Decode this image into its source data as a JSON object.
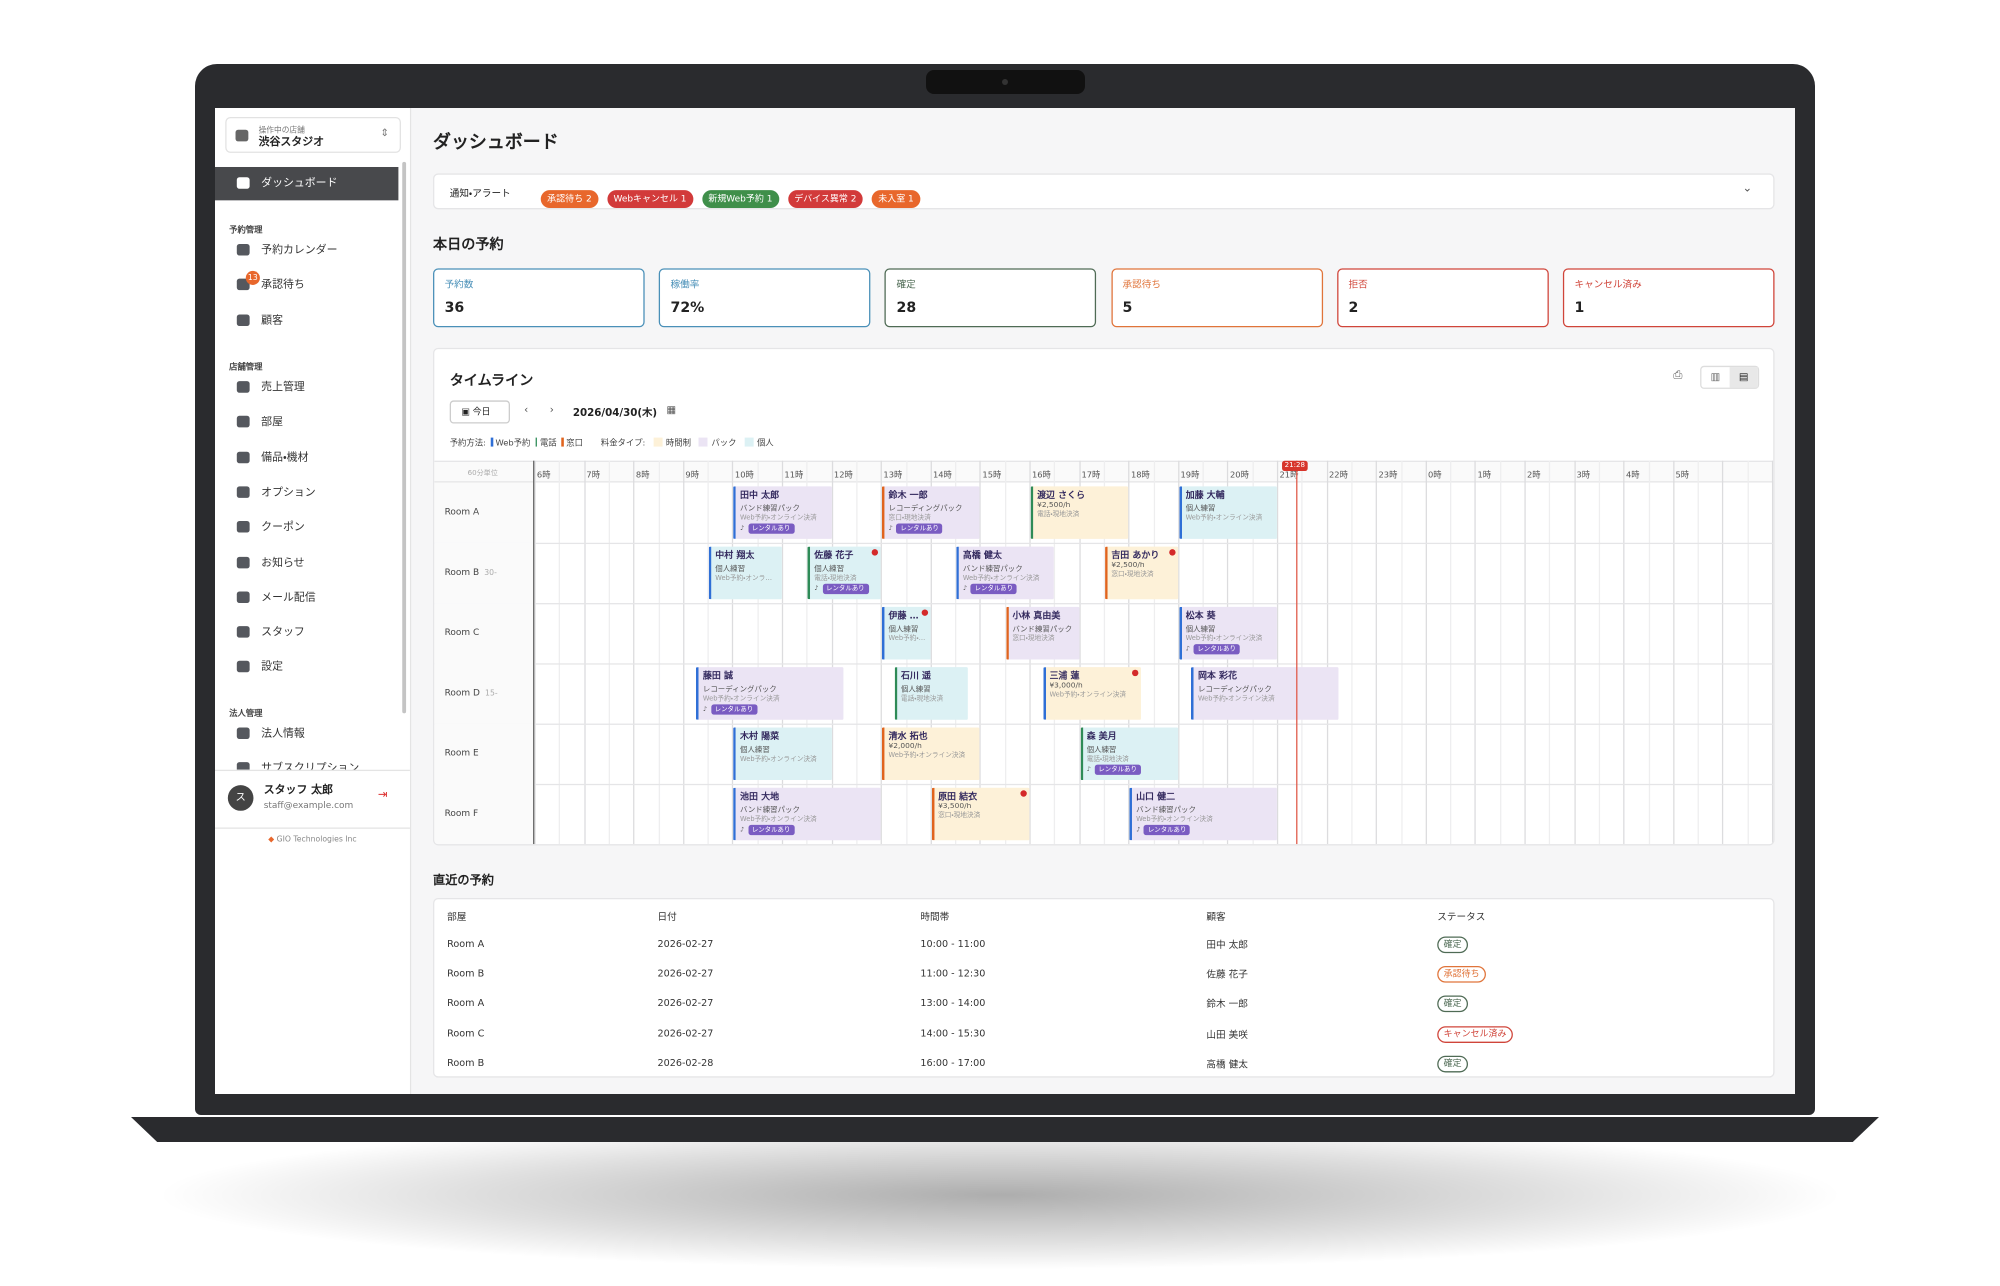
{
  "store": {
    "caption": "操作中の店舗",
    "name": "渋谷スタジオ"
  },
  "nav": {
    "active": "ダッシュボード",
    "sections": [
      {
        "title": "予約管理",
        "items": [
          {
            "label": "予約カレンダー"
          },
          {
            "label": "承認待ち",
            "badge": 13
          },
          {
            "label": "顧客"
          }
        ]
      },
      {
        "title": "店舗管理",
        "items": [
          {
            "label": "売上管理"
          },
          {
            "label": "部屋"
          },
          {
            "label": "備品・機材"
          },
          {
            "label": "オプション"
          },
          {
            "label": "クーポン"
          },
          {
            "label": "お知らせ"
          },
          {
            "label": "メール配信"
          },
          {
            "label": "スタッフ"
          },
          {
            "label": "設定"
          }
        ]
      },
      {
        "title": "法人管理",
        "items": [
          {
            "label": "法人情報"
          },
          {
            "label": "サブスクリプション"
          }
        ]
      }
    ]
  },
  "user": {
    "avatar": "ス",
    "name": "スタッフ 太郎",
    "email": "staff@example.com"
  },
  "footer": "GIO Technologies Inc",
  "page_title": "ダッシュボード",
  "alerts": {
    "label": "通知・アラート",
    "chips": [
      {
        "text": "承認待ち",
        "count": 2,
        "color": "#e8672c"
      },
      {
        "text": "Webキャンセル",
        "count": 1,
        "color": "#d23a3a"
      },
      {
        "text": "新規Web予約",
        "count": 1,
        "color": "#3f8f4a"
      },
      {
        "text": "デバイス異常",
        "count": 2,
        "color": "#d23a3a"
      },
      {
        "text": "未入室",
        "count": 1,
        "color": "#e8672c"
      }
    ]
  },
  "today": {
    "title": "本日の予約",
    "stats": [
      {
        "label": "予約数",
        "value": 36,
        "color": "#4a90b8"
      },
      {
        "label": "稼働率",
        "value": "72%",
        "color": "#4a90b8"
      },
      {
        "label": "確定",
        "value": 28,
        "color": "#4f6b55"
      },
      {
        "label": "承認待ち",
        "value": 5,
        "color": "#e0743a"
      },
      {
        "label": "拒否",
        "value": 2,
        "color": "#d0453a"
      },
      {
        "label": "キャンセル済み",
        "value": 1,
        "color": "#d0453a"
      }
    ]
  },
  "timeline": {
    "title": "タイムライン",
    "today_button": "今日",
    "date": "2026/04/30(木)",
    "method_label": "予約方法:",
    "methods": [
      {
        "label": "Web予約",
        "color": "#2f6fd6"
      },
      {
        "label": "電話",
        "color": "#2e8b57"
      },
      {
        "label": "窓口",
        "color": "#e0641e"
      }
    ],
    "fee_label": "料金タイプ:",
    "fees": [
      {
        "label": "時間制",
        "color": "#fdf1d8"
      },
      {
        "label": "パック",
        "color": "#ebe4f4"
      },
      {
        "label": "個人",
        "color": "#dcf1f4"
      }
    ],
    "unit": "60分単位",
    "now": "21:28",
    "rental_tag": "レンタルあり",
    "hours": [
      "6時",
      "7時",
      "8時",
      "9時",
      "10時",
      "11時",
      "12時",
      "13時",
      "14時",
      "15時",
      "16時",
      "17時",
      "18時",
      "19時",
      "20時",
      "21時",
      "22時",
      "23時",
      "0時",
      "1時",
      "2時",
      "3時",
      "4時",
      "5時"
    ],
    "rooms": [
      {
        "name": "Room A",
        "bookings": [
          {
            "name": "田中 太郎",
            "type": "バンド練習パック",
            "sub": "Web予約・オンライン決済",
            "method": "Web予約",
            "fee": "パック",
            "rental": true
          },
          {
            "name": "鈴木 一郎",
            "type": "レコーディングパック",
            "sub": "窓口・現地決済",
            "method": "窓口",
            "fee": "パック",
            "rental": true
          },
          {
            "name": "渡辺 さくら",
            "type": "¥2,500/h",
            "sub": "電話・現地決済",
            "method": "電話",
            "fee": "時間制"
          },
          {
            "name": "加藤 大輔",
            "type": "個人練習",
            "sub": "Web予約・オンライン決済",
            "method": "Web予約",
            "fee": "個人"
          }
        ]
      },
      {
        "name": "Room B",
        "note": "30-",
        "bookings": [
          {
            "name": "中村 翔太",
            "type": "個人練習",
            "sub": "Web予約・オンライン決済",
            "method": "Web予約",
            "fee": "個人"
          },
          {
            "name": "佐藤 花子",
            "type": "個人練習",
            "sub": "電話・現地決済",
            "method": "電話",
            "fee": "個人",
            "rental": true,
            "alert": true
          },
          {
            "name": "高橋 健太",
            "type": "バンド練習パック",
            "sub": "Web予約・オンライン決済",
            "method": "Web予約",
            "fee": "パック",
            "rental": true
          },
          {
            "name": "吉田 あかり",
            "type": "¥2,500/h",
            "sub": "窓口・現地決済",
            "method": "窓口",
            "fee": "時間制",
            "alert": true
          }
        ]
      },
      {
        "name": "Room C",
        "bookings": [
          {
            "name": "伊藤 裕子",
            "type": "個人練習",
            "sub": "Web予約・オンライン決済",
            "method": "Web予約",
            "fee": "個人",
            "alert": true
          },
          {
            "name": "小林 真由美",
            "type": "バンド練習パック",
            "sub": "窓口・現地決済",
            "method": "窓口",
            "fee": "パック"
          },
          {
            "name": "松本 葵",
            "type": "個人練習",
            "sub": "Web予約・オンライン決済",
            "method": "Web予約",
            "fee": "パック",
            "rental": true
          }
        ]
      },
      {
        "name": "Room D",
        "note": "15-",
        "bookings": [
          {
            "name": "藤田 誠",
            "type": "レコーディングパック",
            "sub": "Web予約・オンライン決済",
            "method": "Web予約",
            "fee": "パック",
            "rental": true
          },
          {
            "name": "石川 遥",
            "type": "個人練習",
            "sub": "電話・現地決済",
            "method": "電話",
            "fee": "個人"
          },
          {
            "name": "三浦 蓮",
            "type": "¥3,000/h",
            "sub": "Web予約・オンライン決済",
            "method": "Web予約",
            "fee": "時間制",
            "alert": true
          },
          {
            "name": "岡本 彩花",
            "type": "レコーディングパック",
            "sub": "Web予約・オンライン決済",
            "method": "Web予約",
            "fee": "パック"
          }
        ]
      },
      {
        "name": "Room E",
        "bookings": [
          {
            "name": "木村 陽菜",
            "type": "個人練習",
            "sub": "Web予約・オンライン決済",
            "method": "Web予約",
            "fee": "個人"
          },
          {
            "name": "清水 拓也",
            "type": "¥2,000/h",
            "sub": "Web予約・オンライン決済",
            "method": "窓口",
            "fee": "時間制"
          },
          {
            "name": "森 美月",
            "type": "個人練習",
            "sub": "電話・現地決済",
            "method": "電話",
            "fee": "個人",
            "rental": true
          }
        ]
      },
      {
        "name": "Room F",
        "bookings": [
          {
            "name": "池田 大地",
            "type": "バンド練習パック",
            "sub": "Web予約・オンライン決済",
            "method": "Web予約",
            "fee": "パック",
            "rental": true
          },
          {
            "name": "原田 結衣",
            "type": "¥3,500/h",
            "sub": "窓口・現地決済",
            "method": "窓口",
            "fee": "時間制",
            "alert": true
          },
          {
            "name": "山口 健二",
            "type": "バンド練習パック",
            "sub": "Web予約・オンライン決済",
            "method": "Web予約",
            "fee": "パック",
            "rental": true
          }
        ]
      }
    ]
  },
  "recent": {
    "title": "直近の予約",
    "headers": [
      "部屋",
      "日付",
      "時間帯",
      "顧客",
      "ステータス"
    ],
    "rows": [
      {
        "room": "Room A",
        "date": "2026-02-27",
        "time": "10:00 - 11:00",
        "customer": "田中 太郎",
        "status": "確定",
        "status_color": "#4f6b55"
      },
      {
        "room": "Room B",
        "date": "2026-02-27",
        "time": "11:00 - 12:30",
        "customer": "佐藤 花子",
        "status": "承認待ち",
        "status_color": "#e0743a"
      },
      {
        "room": "Room A",
        "date": "2026-02-27",
        "time": "13:00 - 14:00",
        "customer": "鈴木 一郎",
        "status": "確定",
        "status_color": "#4f6b55"
      },
      {
        "room": "Room C",
        "date": "2026-02-27",
        "time": "14:00 - 15:30",
        "customer": "山田 美咲",
        "status": "キャンセル済み",
        "status_color": "#d0453a"
      },
      {
        "room": "Room B",
        "date": "2026-02-28",
        "time": "16:00 - 17:00",
        "customer": "高橋 健太",
        "status": "確定",
        "status_color": "#4f6b55"
      }
    ]
  }
}
